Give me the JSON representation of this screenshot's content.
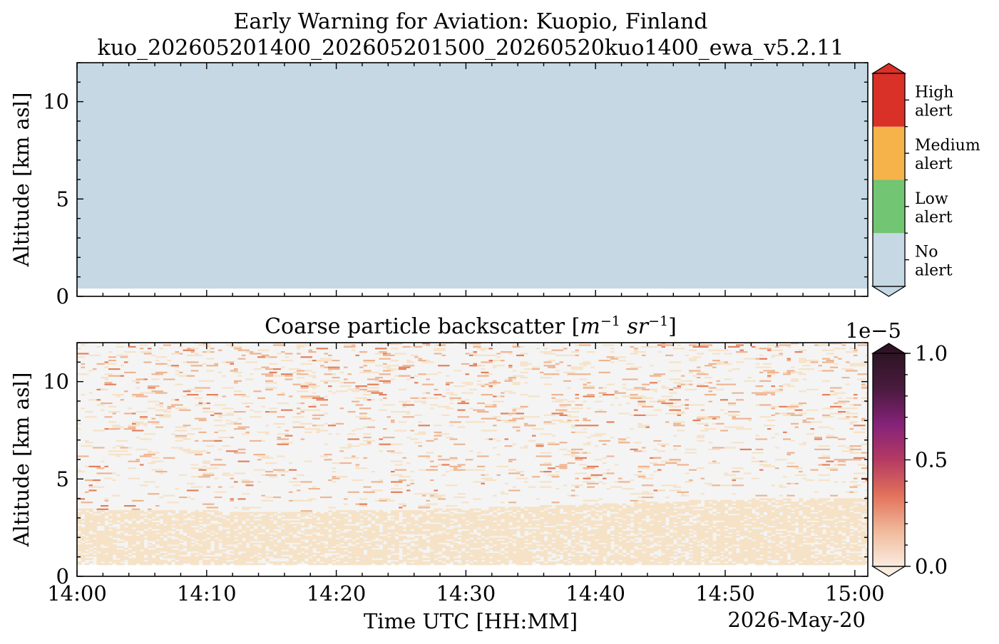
{
  "figure": {
    "title_line1": "Early Warning for Aviation: Kuopio, Finland",
    "title_line2": "kuo_202605201400_202605201500_20260520kuo1400_ewa_v5.2.11"
  },
  "chart_data": [
    {
      "type": "heatmap",
      "name": "alert-panel",
      "title": "",
      "ylabel": "Altitude [km asl]",
      "xlabel": "",
      "xlim_minutes": [
        0,
        61
      ],
      "ylim": [
        0,
        12
      ],
      "yticks": [
        0,
        5,
        10
      ],
      "fill": {
        "from_altitude": 0.4,
        "to_altitude": 12,
        "category": "No alert"
      },
      "colorbar": {
        "categories": [
          {
            "line1": "No",
            "line2": "alert",
            "color": "#c5d8e4"
          },
          {
            "line1": "Low",
            "line2": "alert",
            "color": "#72c573"
          },
          {
            "line1": "Medium",
            "line2": "alert",
            "color": "#f6b349"
          },
          {
            "line1": "High",
            "line2": "alert",
            "color": "#d93027"
          }
        ]
      }
    },
    {
      "type": "heatmap",
      "name": "backscatter-panel",
      "title_prefix": "Coarse particle backscatter [",
      "title_math": "m",
      "title_exp1": "−1",
      "title_math2": "sr",
      "title_exp2": "−1",
      "title_suffix": "]",
      "xlabel": "Time UTC [HH:MM]",
      "ylabel": "Altitude [km asl]",
      "date_label": "2026-May-20",
      "xticks": [
        "14:00",
        "14:10",
        "14:20",
        "14:30",
        "14:40",
        "14:50",
        "15:00"
      ],
      "xtick_minutes": [
        0,
        10,
        20,
        30,
        40,
        50,
        60
      ],
      "xlim_minutes": [
        0,
        61
      ],
      "ylim": [
        0,
        12
      ],
      "yticks": [
        0,
        5,
        10
      ],
      "data_floor_altitude": 0.6,
      "aerosol_layer_top_altitude": 3.5,
      "colorbar": {
        "offset_label": "1e−5",
        "ticks": [
          "0.0",
          "0.5",
          "1.0"
        ],
        "tick_values": [
          0,
          0.5,
          1.0
        ],
        "range": [
          0,
          1.0
        ]
      }
    }
  ],
  "colors": {
    "background_field": "#f4f4f4",
    "aerosol_low": "#f6e2c6",
    "aerosol_mid": "#efb48f",
    "aerosol_high": "#e47f5c",
    "colormap_stops": [
      "#f9ece0",
      "#f0b99a",
      "#e2725b",
      "#b43a63",
      "#852279",
      "#4a1b3e",
      "#2e1424"
    ]
  }
}
